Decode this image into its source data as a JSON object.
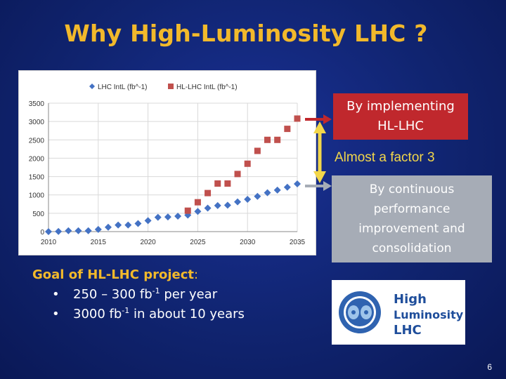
{
  "slide": {
    "title": "Why High-Luminosity LHC ?",
    "page_number": "6"
  },
  "callouts": {
    "implementing": "By implementing HL-LHC",
    "factor": "Almost a factor 3",
    "continuous": "By continuous performance improvement and consolidation"
  },
  "goal": {
    "heading": "Goal of HL-LHC project",
    "colon": ":",
    "bullets": [
      {
        "pre": "250 – 300 fb",
        "sup": "-1",
        "post": " per year"
      },
      {
        "pre": "3000 fb",
        "sup": "-1",
        "post": " in about 10 years"
      }
    ]
  },
  "logo": {
    "lines": [
      "High",
      "Luminosity",
      "LHC"
    ]
  },
  "colors": {
    "title": "#f2b92b",
    "lhc_series": "#4472c4",
    "hllhc_series": "#c0504d",
    "callout_red": "#c0282d",
    "callout_gray": "#a6acb6",
    "callout_yellow_text": "#f2d64a"
  },
  "chart_data": {
    "type": "scatter",
    "title": "",
    "xlabel": "",
    "ylabel": "",
    "xlim": [
      2010,
      2035
    ],
    "ylim": [
      0,
      3500
    ],
    "xticks": [
      2010,
      2015,
      2020,
      2025,
      2030,
      2035
    ],
    "yticks": [
      0,
      500,
      1000,
      1500,
      2000,
      2500,
      3000,
      3500
    ],
    "grid": true,
    "legend": "top",
    "series": [
      {
        "name": "LHC IntL (fb^-1)",
        "marker": "diamond",
        "x": [
          2010,
          2011,
          2012,
          2013,
          2014,
          2015,
          2016,
          2017,
          2018,
          2019,
          2020,
          2021,
          2022,
          2023,
          2024,
          2025,
          2026,
          2027,
          2028,
          2029,
          2030,
          2031,
          2032,
          2033,
          2034,
          2035
        ],
        "y": [
          0,
          5,
          25,
          25,
          25,
          60,
          120,
          180,
          180,
          220,
          300,
          390,
          400,
          420,
          450,
          550,
          640,
          710,
          720,
          810,
          880,
          960,
          1060,
          1130,
          1210,
          1300
        ]
      },
      {
        "name": "HL-LHC IntL (fb^-1)",
        "marker": "square",
        "x": [
          2024,
          2025,
          2026,
          2027,
          2028,
          2029,
          2030,
          2031,
          2032,
          2033,
          2034,
          2035
        ],
        "y": [
          570,
          800,
          1050,
          1310,
          1310,
          1570,
          1850,
          2200,
          2500,
          2500,
          2800,
          3080
        ]
      }
    ]
  }
}
